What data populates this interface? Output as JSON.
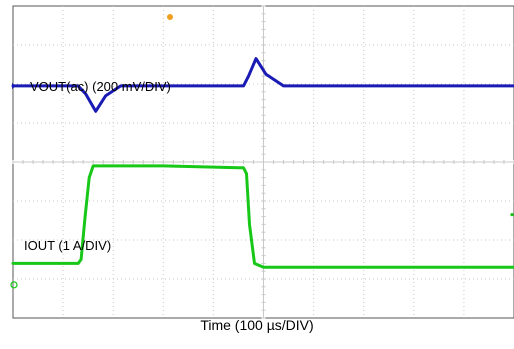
{
  "chart_data": {
    "type": "line",
    "xlabel": "Time (100 µs/DIV)",
    "grid": true,
    "divisions": {
      "x": 10,
      "y": 8
    },
    "colors": {
      "vout": "#1a1ab4",
      "iout": "#18c818",
      "grid": "#c8c8c8",
      "marker": "#f0a020"
    },
    "series": [
      {
        "name": "VOUT(ac) (200 mV/DIV)",
        "color": "#1a1ab4",
        "x": [
          0,
          1.3,
          1.45,
          1.65,
          1.85,
          2.15,
          3.0,
          4.0,
          4.6,
          4.7,
          4.85,
          5.05,
          5.4,
          7.0,
          10.0
        ],
        "y": [
          5.95,
          5.95,
          5.75,
          5.3,
          5.7,
          5.95,
          5.95,
          5.95,
          5.95,
          6.2,
          6.65,
          6.25,
          5.95,
          5.95,
          5.95
        ]
      },
      {
        "name": "IOUT (1 A/DIV)",
        "color": "#18c818",
        "x": [
          0,
          1.3,
          1.36,
          1.44,
          1.52,
          1.6,
          3.0,
          4.5,
          4.6,
          4.66,
          4.72,
          4.82,
          5.0,
          7.0,
          10.0
        ],
        "y": [
          1.4,
          1.4,
          1.5,
          2.6,
          3.6,
          3.9,
          3.9,
          3.85,
          3.85,
          3.7,
          2.4,
          1.4,
          1.3,
          1.3,
          1.3
        ]
      }
    ]
  }
}
